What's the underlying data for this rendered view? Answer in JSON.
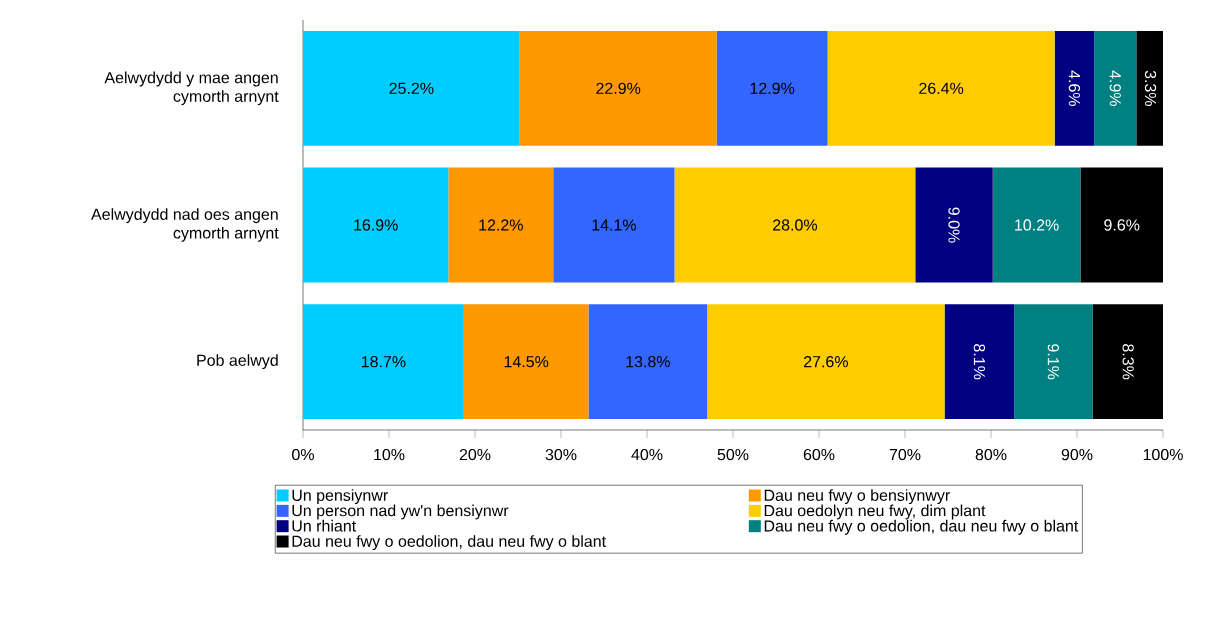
{
  "chart_data": {
    "type": "bar",
    "orientation": "horizontal",
    "stacked": true,
    "categories": [
      "Aelwydydd y mae angen cymorth arnynt",
      "Aelwydydd nad oes angen cymorth arnynt",
      "Pob aelwyd"
    ],
    "series": [
      {
        "name": "Un pensiynwr",
        "color": "#00ccff",
        "values": [
          25.2,
          16.9,
          18.7
        ],
        "value_labels": [
          "25.2%",
          "16.9%",
          "18.7%"
        ]
      },
      {
        "name": "Dau neu fwy o bensiynwyr",
        "color": "#ff9900",
        "values": [
          22.9,
          12.2,
          14.5
        ],
        "value_labels": [
          "22.9%",
          "12.2%",
          "14.5%"
        ]
      },
      {
        "name": "Un person nad yw'n bensiynwr",
        "color": "#3366ff",
        "values": [
          12.9,
          14.1,
          13.8
        ],
        "value_labels": [
          "12.9%",
          "14.1%",
          "13.8%"
        ]
      },
      {
        "name": "Dau oedolyn neu fwy, dim plant",
        "color": "#ffcc00",
        "values": [
          26.4,
          28.0,
          27.6
        ],
        "value_labels": [
          "26.4%",
          "28.0%",
          "27.6%"
        ]
      },
      {
        "name": "Un rhiant",
        "color": "#000080",
        "values": [
          4.6,
          9.0,
          8.1
        ],
        "value_labels": [
          "4.6%",
          "9.0%",
          "8.1%"
        ]
      },
      {
        "name": "Dau neu fwy o oedolion, dau neu fwy o blant",
        "color": "#008080",
        "values": [
          4.9,
          10.2,
          9.1
        ],
        "value_labels": [
          "4.9%",
          "10.2%",
          "9.1%"
        ]
      },
      {
        "name": "Dau neu fwy o oedolion, dau neu fwy o blant",
        "color": "#000000",
        "values": [
          3.3,
          9.6,
          8.3
        ],
        "value_labels": [
          "3.3%",
          "9.6%",
          "8.3%"
        ]
      }
    ],
    "xlim": [
      0,
      100
    ],
    "xticks": [
      {
        "value": 0,
        "label": "0%"
      },
      {
        "value": 10,
        "label": "10%"
      },
      {
        "value": 20,
        "label": "20%"
      },
      {
        "value": 30,
        "label": "30%"
      },
      {
        "value": 40,
        "label": "40%"
      },
      {
        "value": 50,
        "label": "50%"
      },
      {
        "value": 60,
        "label": "60%"
      },
      {
        "value": 70,
        "label": "70%"
      },
      {
        "value": 80,
        "label": "80%"
      },
      {
        "value": 90,
        "label": "90%"
      },
      {
        "value": 100,
        "label": "100%"
      }
    ],
    "grid": false,
    "legend": "bottom"
  }
}
